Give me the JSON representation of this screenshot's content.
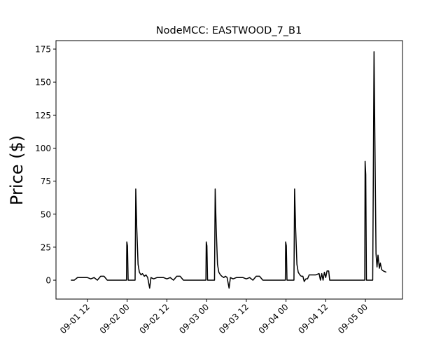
{
  "chart_data": {
    "type": "line",
    "title": "NodeMCC: EASTWOOD_7_B1",
    "y_label": "Price ($)",
    "color": "#000000",
    "x": [
      7,
      8,
      9,
      10,
      11,
      12,
      13,
      14,
      15,
      16,
      17,
      18,
      23.8,
      23.9,
      24.1,
      24.3,
      26.4,
      26.6,
      26.9,
      27.3,
      27.7,
      28.2,
      28.6,
      29.2,
      29.7,
      30.2,
      30.8,
      31.2,
      32,
      33,
      34,
      35,
      36,
      37,
      38,
      39,
      40,
      41,
      47.8,
      47.9,
      48.1,
      48.3,
      50.4,
      50.6,
      50.9,
      51.3,
      51.7,
      52.2,
      52.6,
      53.2,
      53.7,
      54.2,
      54.8,
      55.2,
      56,
      57,
      58,
      59,
      60,
      61,
      62,
      63,
      64,
      65,
      71.8,
      71.9,
      72.1,
      72.3,
      74.4,
      74.6,
      74.9,
      75.3,
      75.7,
      76.2,
      76.6,
      77.1,
      77.5,
      78,
      78.5,
      79,
      80,
      81,
      82,
      82.4,
      82.8,
      83.2,
      83.6,
      84,
      84.4,
      84.9,
      85.2,
      95.8,
      95.9,
      96.1,
      96.3,
      98.2,
      98.6,
      99.2,
      99.5,
      99.8,
      100.2,
      100.5,
      100.9,
      101.4,
      102.3
    ],
    "values": [
      0,
      0,
      2,
      2,
      2,
      2,
      1,
      2,
      0,
      3,
      3,
      0,
      0,
      29,
      26,
      0,
      0,
      69,
      40,
      12,
      6,
      4,
      5,
      3,
      4,
      2,
      -6,
      2,
      1,
      2,
      2,
      2,
      1,
      2,
      0,
      3,
      3,
      0,
      0,
      29,
      26,
      0,
      0,
      69,
      40,
      12,
      6,
      4,
      3,
      2,
      3,
      2,
      -6,
      2,
      1,
      2,
      2,
      2,
      1,
      2,
      0,
      3,
      3,
      0,
      0,
      29,
      26,
      0,
      0,
      69,
      40,
      12,
      6,
      4,
      3,
      3,
      -1,
      1,
      1,
      4,
      4,
      4,
      5,
      0,
      5,
      0,
      6,
      2,
      7,
      7,
      0,
      0,
      90,
      80,
      0,
      0,
      173,
      20,
      10,
      19,
      9,
      13,
      8,
      7,
      6
    ],
    "xlim": [
      2.5,
      107.2
    ],
    "xticks": [
      {
        "value": 12,
        "label": "09-01 12"
      },
      {
        "value": 24,
        "label": "09-02 00"
      },
      {
        "value": 36,
        "label": "09-02 12"
      },
      {
        "value": 48,
        "label": "09-03 00"
      },
      {
        "value": 60,
        "label": "09-03 12"
      },
      {
        "value": 72,
        "label": "09-04 00"
      },
      {
        "value": 84,
        "label": "09-04 12"
      },
      {
        "value": 96,
        "label": "09-05 00"
      }
    ],
    "ylim": [
      -14.3,
      181.4
    ],
    "yticks": [
      0,
      25,
      50,
      75,
      100,
      125,
      150,
      175
    ]
  }
}
